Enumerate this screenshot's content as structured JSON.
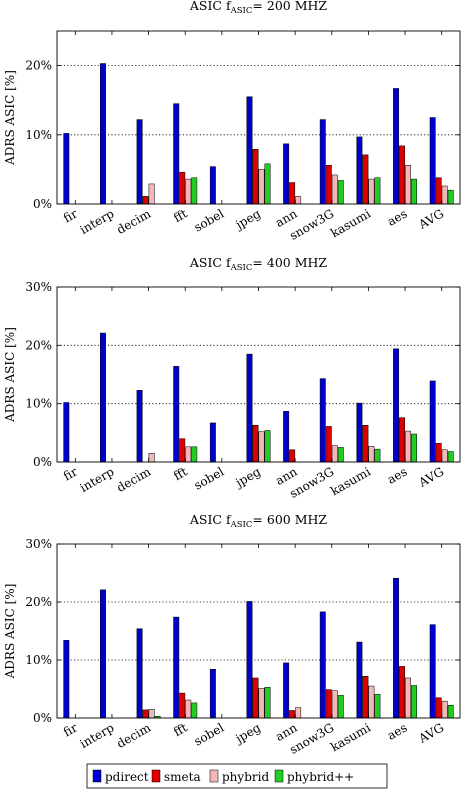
{
  "colors": {
    "pdirect": "#0000cc",
    "smeta": "#dd0000",
    "phybrid": "#f2b8b8",
    "phybridpp": "#22cc22",
    "grid": "#000000"
  },
  "legend": {
    "position": "bottom",
    "entries": [
      "pdirect",
      "smeta",
      "phybrid",
      "phybrid++"
    ]
  },
  "chart_data": [
    {
      "type": "bar",
      "title": {
        "main": "ASIC f",
        "sub": "ASIC",
        "rest": "= 200 MHZ"
      },
      "ylabel": "ADRS ASIC [%]",
      "ylim": [
        0,
        25
      ],
      "yticks": [
        0,
        10,
        20
      ],
      "ytick_labels": [
        "0%",
        "10%",
        "20%"
      ],
      "categories": [
        "fir",
        "interp",
        "decim",
        "fft",
        "sobel",
        "jpeg",
        "ann",
        "snow3G",
        "kasumi",
        "aes",
        "AVG"
      ],
      "series": [
        {
          "name": "pdirect",
          "values": [
            10.2,
            20.3,
            12.2,
            14.5,
            5.4,
            15.5,
            8.7,
            12.2,
            9.7,
            16.7,
            12.5
          ]
        },
        {
          "name": "smeta",
          "values": [
            0,
            0,
            1.1,
            4.6,
            0,
            7.9,
            3.1,
            5.6,
            7.1,
            8.4,
            3.8
          ]
        },
        {
          "name": "phybrid",
          "values": [
            0,
            0,
            2.9,
            3.6,
            0,
            5.0,
            1.1,
            4.2,
            3.6,
            5.6,
            2.6
          ]
        },
        {
          "name": "phybrid++",
          "values": [
            0,
            0,
            0,
            3.8,
            0,
            5.8,
            0,
            3.4,
            3.8,
            3.6,
            2.0
          ]
        }
      ]
    },
    {
      "type": "bar",
      "title": {
        "main": "ASIC f",
        "sub": "ASIC",
        "rest": "= 400 MHZ"
      },
      "ylabel": "ADRS ASIC [%]",
      "ylim": [
        0,
        30
      ],
      "yticks": [
        0,
        10,
        20,
        30
      ],
      "ytick_labels": [
        "0%",
        "10%",
        "20%",
        "30%"
      ],
      "categories": [
        "fir",
        "interp",
        "decim",
        "fft",
        "sobel",
        "jpeg",
        "ann",
        "snow3G",
        "kasumi",
        "aes",
        "AVG"
      ],
      "series": [
        {
          "name": "pdirect",
          "values": [
            10.2,
            22.1,
            12.3,
            16.4,
            6.7,
            18.5,
            8.7,
            14.3,
            10.1,
            19.4,
            13.9
          ]
        },
        {
          "name": "smeta",
          "values": [
            0,
            0,
            0,
            4.0,
            0,
            6.3,
            2.1,
            6.1,
            6.3,
            7.6,
            3.2
          ]
        },
        {
          "name": "phybrid",
          "values": [
            0,
            0,
            1.5,
            2.6,
            0,
            5.2,
            0,
            2.8,
            2.7,
            5.3,
            2.1
          ]
        },
        {
          "name": "phybrid++",
          "values": [
            0,
            0,
            0,
            2.6,
            0,
            5.4,
            0,
            2.5,
            2.2,
            4.8,
            1.8
          ]
        }
      ]
    },
    {
      "type": "bar",
      "title": {
        "main": "ASIC f",
        "sub": "ASIC",
        "rest": "= 600 MHZ"
      },
      "ylabel": "ADRS ASIC [%]",
      "ylim": [
        0,
        30
      ],
      "yticks": [
        0,
        10,
        20,
        30
      ],
      "ytick_labels": [
        "0%",
        "10%",
        "20%",
        "30%"
      ],
      "categories": [
        "fir",
        "interp",
        "decim",
        "fft",
        "sobel",
        "jpeg",
        "ann",
        "snow3G",
        "kasumi",
        "aes",
        "AVG"
      ],
      "series": [
        {
          "name": "pdirect",
          "values": [
            13.4,
            22.1,
            15.4,
            17.4,
            8.4,
            20.1,
            9.5,
            18.3,
            13.1,
            24.1,
            16.1
          ]
        },
        {
          "name": "smeta",
          "values": [
            0,
            0,
            1.4,
            4.3,
            0,
            6.9,
            1.3,
            4.9,
            7.2,
            8.9,
            3.5
          ]
        },
        {
          "name": "phybrid",
          "values": [
            0,
            0,
            1.5,
            3.1,
            0,
            5.1,
            1.8,
            4.7,
            5.5,
            6.9,
            2.9
          ]
        },
        {
          "name": "phybrid++",
          "values": [
            0,
            0,
            0.3,
            2.6,
            0,
            5.3,
            0,
            3.9,
            4.1,
            5.6,
            2.2
          ]
        }
      ]
    }
  ]
}
